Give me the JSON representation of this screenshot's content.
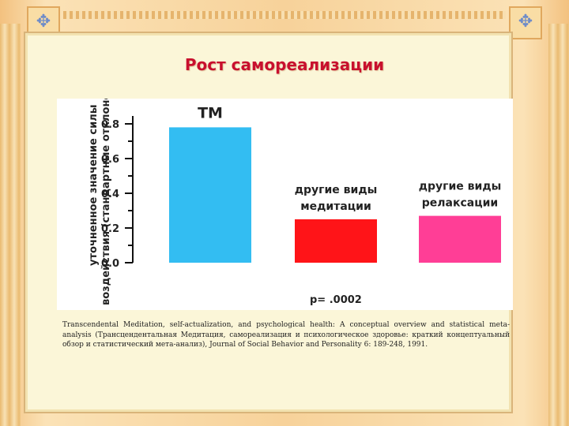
{
  "title": "Рост самореализации",
  "citation": "Transcendental Meditation, self-actualization, and psychological health: A conceptual overview and statistical meta-analysis (Трансцендентальная Медитация, самореализация и психологическое здоровье: краткий концептуальный обзор и статистический мета-анализ), Journal of Social Behavior and Personality 6: 189-248, 1991.",
  "colors": {
    "title": "#c8102e",
    "tm": "#33bdf2",
    "meditation": "#ff1418",
    "relaxation": "#ff3e96"
  },
  "chart_data": {
    "type": "bar",
    "title": "",
    "ylabel_line1": "уточненное значение силы",
    "ylabel_line2": "воздействия (стандартные отклонения)",
    "ylim": [
      0,
      0.8
    ],
    "yticks": [
      "0.0",
      "0.2",
      "0.4",
      "0.6",
      "0.8"
    ],
    "categories": [
      {
        "label_lines": [
          "TM"
        ],
        "value": 0.78,
        "color": "#33bdf2"
      },
      {
        "label_lines": [
          "другие виды",
          "медитации"
        ],
        "value": 0.25,
        "color": "#ff1418"
      },
      {
        "label_lines": [
          "другие виды",
          "релаксации"
        ],
        "value": 0.27,
        "color": "#ff3e96"
      }
    ],
    "p_value": "p= .0002",
    "grid": false
  }
}
